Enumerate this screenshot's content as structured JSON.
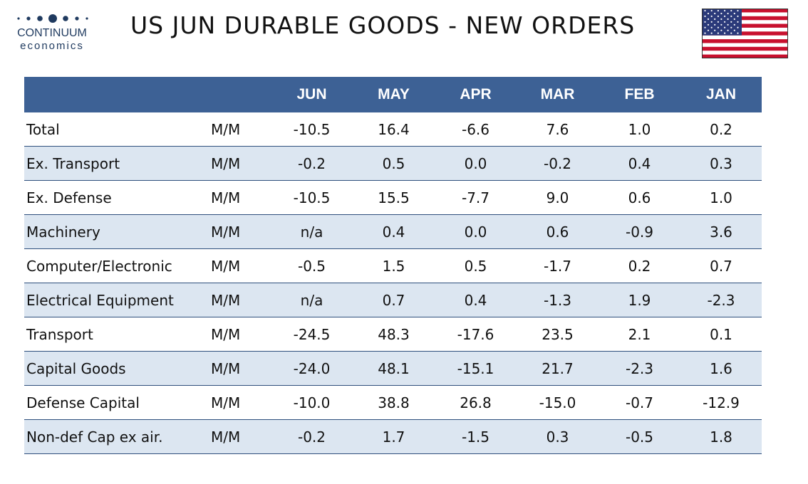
{
  "header": {
    "logo_name": "CONTINUUM",
    "logo_sub": "economics",
    "title": "US JUN DURABLE GOODS - NEW ORDERS",
    "flag": "us-flag-icon"
  },
  "colors": {
    "header_bg": "#3d6195",
    "row_alt": "#dce6f1",
    "logo": "#1f3a5f"
  },
  "table": {
    "columns": [
      "",
      "",
      "JUN",
      "MAY",
      "APR",
      "MAR",
      "FEB",
      "JAN"
    ],
    "rows": [
      [
        "Total",
        "M/M",
        "-10.5",
        "16.4",
        "-6.6",
        "7.6",
        "1.0",
        "0.2"
      ],
      [
        "Ex. Transport",
        "M/M",
        "-0.2",
        "0.5",
        "0.0",
        "-0.2",
        "0.4",
        "0.3"
      ],
      [
        "Ex. Defense",
        "M/M",
        "-10.5",
        "15.5",
        "-7.7",
        "9.0",
        "0.6",
        "1.0"
      ],
      [
        "Machinery",
        "M/M",
        "n/a",
        "0.4",
        "0.0",
        "0.6",
        "-0.9",
        "3.6"
      ],
      [
        "Computer/Electronic",
        "M/M",
        "-0.5",
        "1.5",
        "0.5",
        "-1.7",
        "0.2",
        "0.7"
      ],
      [
        "Electrical Equipment",
        "M/M",
        "n/a",
        "0.7",
        "0.4",
        "-1.3",
        "1.9",
        "-2.3"
      ],
      [
        "Transport",
        "M/M",
        "-24.5",
        "48.3",
        "-17.6",
        "23.5",
        "2.1",
        "0.1"
      ],
      [
        "Capital Goods",
        "M/M",
        "-24.0",
        "48.1",
        "-15.1",
        "21.7",
        "-2.3",
        "1.6"
      ],
      [
        "Defense Capital",
        "M/M",
        "-10.0",
        "38.8",
        "26.8",
        "-15.0",
        "-0.7",
        "-12.9"
      ],
      [
        "Non-def Cap ex air.",
        "M/M",
        "-0.2",
        "1.7",
        "-1.5",
        "0.3",
        "-0.5",
        "1.8"
      ]
    ]
  }
}
